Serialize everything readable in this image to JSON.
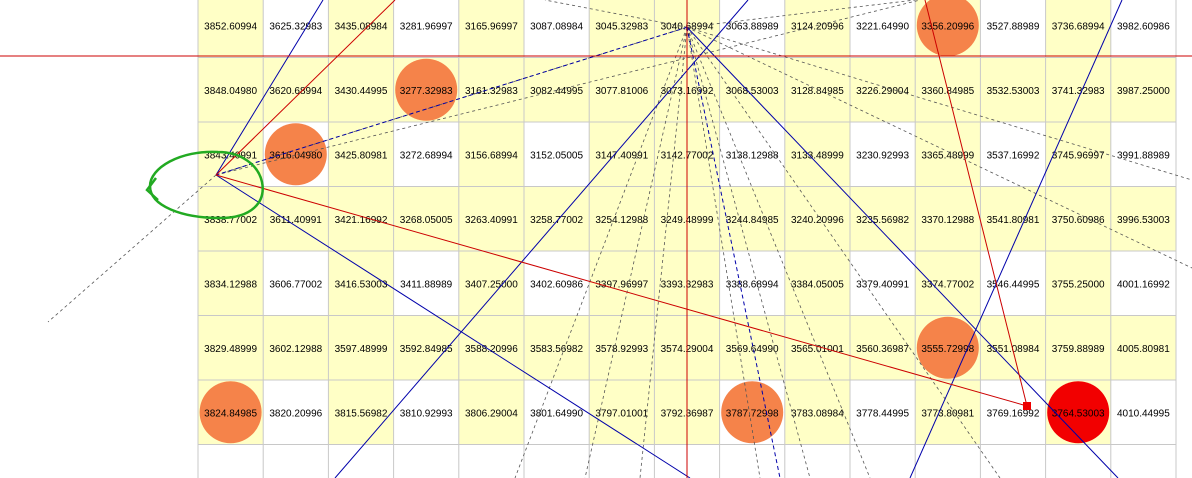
{
  "grid": {
    "rows": [
      [
        "3852.60994",
        "3625.32983",
        "3435.08984",
        "3281.96997",
        "3165.96997",
        "3087.08984",
        "3045.32983",
        "3040.68994",
        "3063.88989",
        "3124.20996",
        "3221.64990",
        "3356.20996",
        "3527.88989",
        "3736.68994",
        "3982.60986"
      ],
      [
        "3848.04980",
        "3620.68994",
        "3430.44995",
        "3277.32983",
        "3161.32983",
        "3082.44995",
        "3077.81006",
        "3073.16992",
        "3068.53003",
        "3128.84985",
        "3226.29004",
        "3360.84985",
        "3532.53003",
        "3741.32983",
        "3987.25000"
      ],
      [
        "3843.40991",
        "3616.04980",
        "3425.80981",
        "3272.68994",
        "3156.68994",
        "3152.05005",
        "3147.40991",
        "3142.77002",
        "3138.12988",
        "3133.48999",
        "3230.92993",
        "3365.48999",
        "3537.16992",
        "3745.96997",
        "3991.88989"
      ],
      [
        "3838.77002",
        "3611.40991",
        "3421.16992",
        "3268.05005",
        "3263.40991",
        "3258.77002",
        "3254.12988",
        "3249.48999",
        "3244.84985",
        "3240.20996",
        "3235.56982",
        "3370.12988",
        "3541.80981",
        "3750.60986",
        "3996.53003"
      ],
      [
        "3834.12988",
        "3606.77002",
        "3416.53003",
        "3411.88989",
        "3407.25000",
        "3402.60986",
        "3397.96997",
        "3393.32983",
        "3388.68994",
        "3384.05005",
        "3379.40991",
        "3374.77002",
        "3546.44995",
        "3755.25000",
        "4001.16992"
      ],
      [
        "3829.48999",
        "3602.12988",
        "3597.48999",
        "3592.84985",
        "3588.20996",
        "3583.56982",
        "3578.92993",
        "3574.29004",
        "3569.64990",
        "3565.01001",
        "3560.36987",
        "3555.72998",
        "3551.08984",
        "3759.88989",
        "4005.80981"
      ],
      [
        "3824.84985",
        "3820.20996",
        "3815.56982",
        "3810.92993",
        "3806.29004",
        "3801.64990",
        "3797.01001",
        "3792.36987",
        "3787.72998",
        "3783.08984",
        "3778.44995",
        "3773.80981",
        "3769.16992",
        "3764.53003",
        "4010.44995"
      ]
    ],
    "highlighted_columns": [
      0,
      2,
      4,
      6,
      7,
      9,
      11,
      13
    ],
    "highlighted_rows": [
      1,
      3,
      5
    ],
    "highlight_color": "#FFFFC6",
    "grid_line_color": "#C8C8C8"
  },
  "markers": [
    {
      "row": 0,
      "col": 11,
      "color": "#F5834A"
    },
    {
      "row": 1,
      "col": 3,
      "color": "#F5834A"
    },
    {
      "row": 2,
      "col": 1,
      "color": "#F5834A"
    },
    {
      "row": 5,
      "col": 11,
      "color": "#F5834A"
    },
    {
      "row": 6,
      "col": 0,
      "color": "#F5834A"
    },
    {
      "row": 6,
      "col": 8,
      "color": "#F5834A"
    },
    {
      "row": 6,
      "col": 13,
      "color": "#F20000"
    }
  ],
  "colors": {
    "red_line": "#CC0000",
    "blue_line": "#0000AA",
    "dashed_line": "#555555",
    "annotation_green": "#22AA22",
    "endpoint_marker": "#EE0000"
  }
}
